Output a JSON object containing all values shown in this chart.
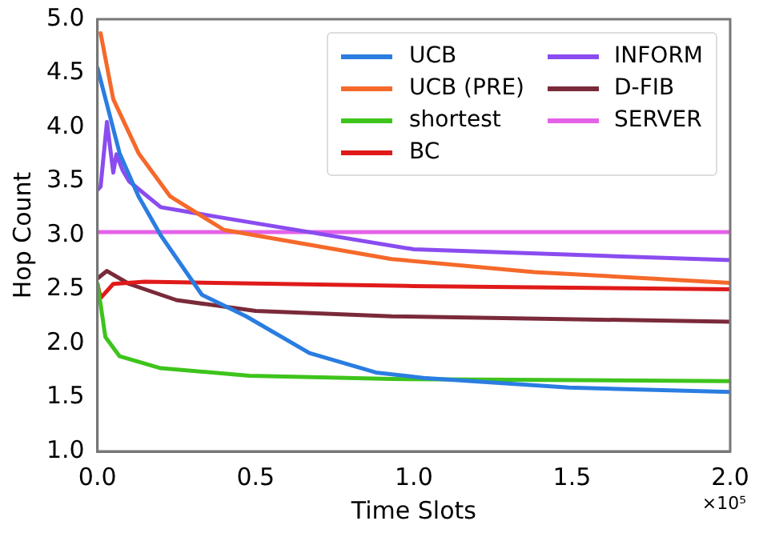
{
  "chart_data": {
    "type": "line",
    "xlabel": "Time Slots",
    "ylabel": "Hop Count",
    "xlim": [
      0,
      2
    ],
    "xticks": [
      {
        "value": 0,
        "label": "0.0"
      },
      0.5,
      {
        "value": 1,
        "label": "1.0"
      },
      1.5,
      {
        "value": 2,
        "label": "2.0"
      }
    ],
    "ylim": [
      1,
      5
    ],
    "yticks": [
      {
        "value": 1,
        "label": "1.0"
      },
      1.5,
      {
        "value": 2,
        "label": "2.0"
      },
      2.5,
      {
        "value": 3,
        "label": "3.0"
      },
      3.5,
      {
        "value": 4,
        "label": "4.0"
      },
      4.5,
      {
        "value": 5,
        "label": "5.0"
      }
    ],
    "annotations": [
      "×10⁵"
    ],
    "legend": "top right",
    "marker": "none",
    "line_style": "solid",
    "series": [
      {
        "name": "UCB",
        "color": "#2a7de1",
        "x": [
          0,
          0.07,
          0.13,
          0.2,
          0.33,
          0.47,
          0.67,
          0.88,
          1.03,
          1.49,
          2.0
        ],
        "values": [
          4.55,
          3.76,
          3.36,
          3.0,
          2.45,
          2.25,
          1.91,
          1.73,
          1.68,
          1.59,
          1.55
        ]
      },
      {
        "name": "UCB (PRE)",
        "color": "#f5692a",
        "x": [
          0.01,
          0.05,
          0.13,
          0.23,
          0.4,
          0.93,
          1.38,
          2.0
        ],
        "values": [
          4.87,
          4.26,
          3.76,
          3.36,
          3.05,
          2.78,
          2.66,
          2.56
        ]
      },
      {
        "name": "shortest",
        "color": "#3ec41c",
        "x": [
          0,
          0.01,
          0.025,
          0.07,
          0.2,
          0.48,
          0.93,
          2.0
        ],
        "values": [
          2.55,
          2.36,
          2.06,
          1.88,
          1.77,
          1.7,
          1.67,
          1.65
        ]
      },
      {
        "name": "BC",
        "color": "#e01a1a",
        "x": [
          0,
          0.01,
          0.05,
          0.15,
          1.0,
          2.0
        ],
        "values": [
          2.55,
          2.42,
          2.55,
          2.57,
          2.53,
          2.5
        ]
      },
      {
        "name": "INFORM",
        "color": "#8a4cf0",
        "x": [
          0,
          0.01,
          0.03,
          0.05,
          0.06,
          0.08,
          0.1,
          0.2,
          0.4,
          1.0,
          1.5,
          2.0
        ],
        "values": [
          3.42,
          3.45,
          4.05,
          3.58,
          3.75,
          3.6,
          3.5,
          3.26,
          3.16,
          2.87,
          2.82,
          2.77
        ]
      },
      {
        "name": "D-FIB",
        "color": "#7a2a3a",
        "x": [
          0,
          0.03,
          0.1,
          0.25,
          0.5,
          0.93,
          2.0
        ],
        "values": [
          2.6,
          2.67,
          2.55,
          2.4,
          2.3,
          2.25,
          2.2
        ]
      },
      {
        "name": "SERVER",
        "color": "#e462e8",
        "x": [
          0,
          2.0
        ],
        "values": [
          3.03,
          3.03
        ]
      }
    ]
  }
}
